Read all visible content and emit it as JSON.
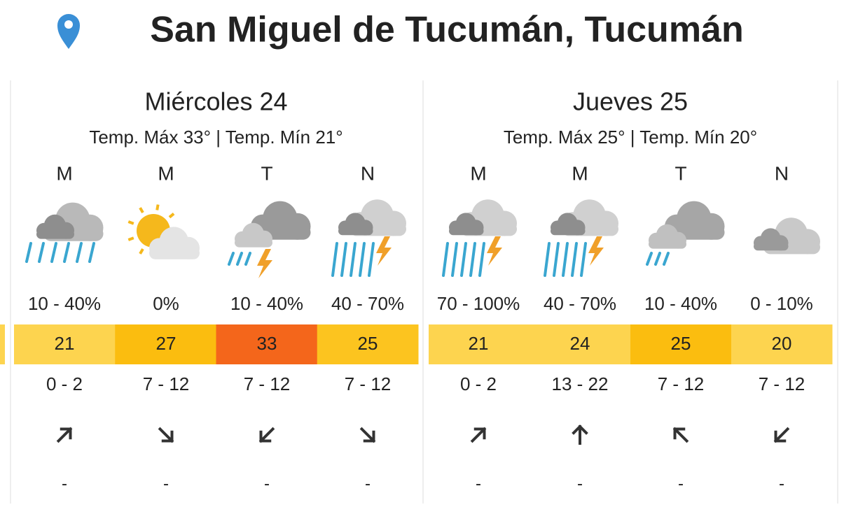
{
  "header": {
    "title": "San Miguel de Tucumán, Tucumán"
  },
  "days": [
    {
      "name": "Miércoles 24",
      "summary": "Temp. Máx 33° | Temp. Mín 21°",
      "periods": [
        {
          "label": "M",
          "precip": "10 - 40%",
          "temp": "21",
          "color": "#fdd44f",
          "wind": "0 - 2",
          "extra": "-"
        },
        {
          "label": "M",
          "precip": "0%",
          "temp": "27",
          "color": "#fbbd0f",
          "wind": "7 - 12",
          "extra": "-"
        },
        {
          "label": "T",
          "precip": "10 - 40%",
          "temp": "33",
          "color": "#f4661b",
          "wind": "7 - 12",
          "extra": "-"
        },
        {
          "label": "N",
          "precip": "40 - 70%",
          "temp": "25",
          "color": "#fcc41f",
          "wind": "7 - 12",
          "extra": "-"
        }
      ]
    },
    {
      "name": "Jueves 25",
      "summary": "Temp. Máx 25° | Temp. Mín 20°",
      "periods": [
        {
          "label": "M",
          "precip": "70 - 100%",
          "temp": "21",
          "color": "#fdd44f",
          "wind": "0 - 2",
          "extra": "-"
        },
        {
          "label": "M",
          "precip": "40 - 70%",
          "temp": "24",
          "color": "#fdd44f",
          "wind": "13 - 22",
          "extra": "-"
        },
        {
          "label": "T",
          "precip": "10 - 40%",
          "temp": "25",
          "color": "#fbbd0f",
          "wind": "7 - 12",
          "extra": "-"
        },
        {
          "label": "N",
          "precip": "0 - 10%",
          "temp": "20",
          "color": "#fdd44f",
          "wind": "7 - 12",
          "extra": "-"
        }
      ]
    }
  ]
}
